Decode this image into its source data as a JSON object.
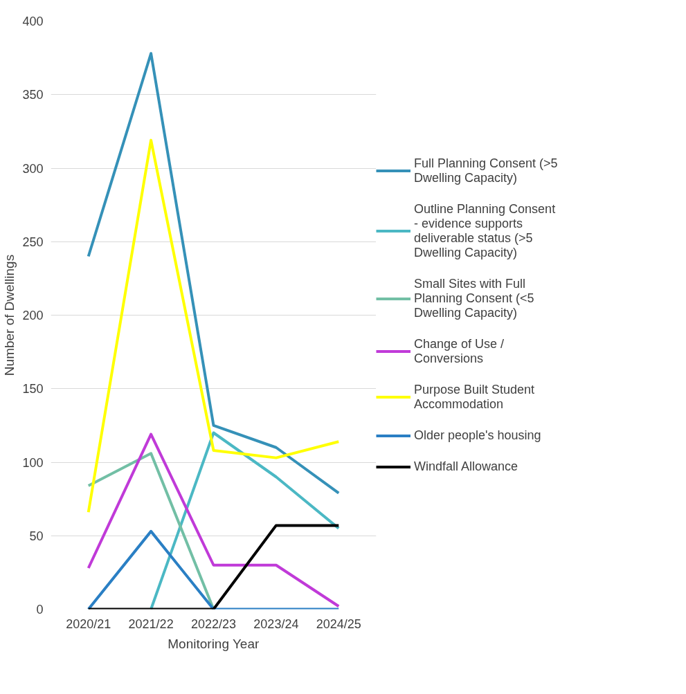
{
  "chart_data": {
    "type": "line",
    "xlabel": "Monitoring Year",
    "ylabel": "Number of Dwellings",
    "categories": [
      "2020/21",
      "2021/22",
      "2022/23",
      "2023/24",
      "2024/25"
    ],
    "ylim": [
      0,
      400
    ],
    "yticks": [
      0,
      50,
      100,
      150,
      200,
      250,
      300,
      350,
      400
    ],
    "grid": "y",
    "legend": "right",
    "marker": "none",
    "line_style": "solid",
    "series": [
      {
        "name": "Full Planning Consent (>5 Dwelling Capacity)",
        "color": "#3591b8",
        "values": [
          240,
          378,
          125,
          110,
          79
        ]
      },
      {
        "name": "Outline Planning Consent - evidence supports deliverable status (>5 Dwelling Capacity)",
        "color": "#4bb8c4",
        "values": [
          null,
          0,
          120,
          90,
          55
        ]
      },
      {
        "name": "Small Sites with Full Planning Consent (<5 Dwelling Capacity)",
        "color": "#72bfa5",
        "values": [
          84,
          106,
          0,
          null,
          null
        ]
      },
      {
        "name": "Change of Use / Conversions",
        "color": "#c03ad8",
        "values": [
          28,
          119,
          30,
          30,
          2
        ]
      },
      {
        "name": "Purpose Built Student Accommodation",
        "color": "#ffff00",
        "values": [
          66,
          319,
          108,
          103,
          114
        ]
      },
      {
        "name": "Older people's housing",
        "color": "#2a7fc4",
        "values": [
          0,
          53,
          0,
          0,
          0
        ]
      },
      {
        "name": "Windfall Allowance",
        "color": "#000000",
        "values": [
          0,
          0,
          0,
          57,
          57
        ]
      }
    ]
  }
}
